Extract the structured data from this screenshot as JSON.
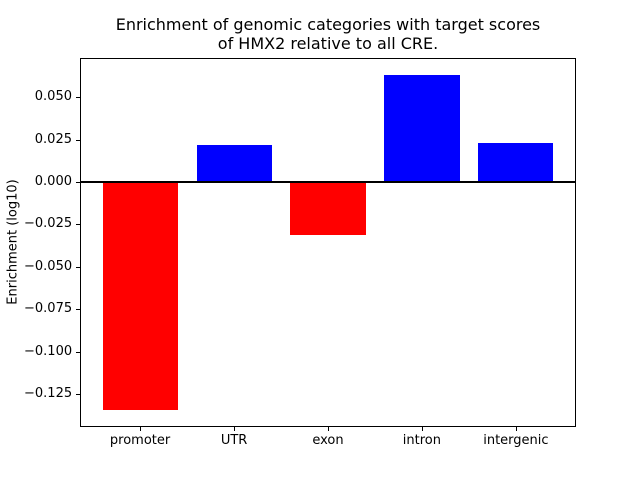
{
  "figure": {
    "background": "#ffffff",
    "title_lines": [
      "Enrichment of genomic categories with target scores",
      "of HMX2 relative to all CRE."
    ],
    "ylabel": "Enrichment (log10)"
  },
  "chart_data": {
    "type": "bar",
    "title": "Enrichment of genomic categories with target scores of HMX2 relative to all CRE.",
    "xlabel": "",
    "ylabel": "Enrichment (log10)",
    "categories": [
      "promoter",
      "UTR",
      "exon",
      "intron",
      "intergenic"
    ],
    "values": [
      -0.134,
      0.022,
      -0.031,
      0.063,
      0.023
    ],
    "bar_colors": [
      "#ff0000",
      "#0000ff",
      "#ff0000",
      "#0000ff",
      "#0000ff"
    ],
    "positive_color": "#0000ff",
    "negative_color": "#ff0000",
    "bar_width": 0.8,
    "xlim": [
      -0.64,
      4.64
    ],
    "ylim": [
      -0.1443,
      0.073
    ],
    "yticks": [
      0.05,
      0.025,
      0.0,
      -0.025,
      -0.05,
      -0.075,
      -0.1,
      -0.125
    ],
    "ytick_labels": [
      "0.050",
      "0.025",
      "0.000",
      "−0.025",
      "−0.050",
      "−0.075",
      "−0.100",
      "−0.125"
    ],
    "zero_line": true,
    "grid": false,
    "legend": null,
    "axis_color": "#000000"
  }
}
